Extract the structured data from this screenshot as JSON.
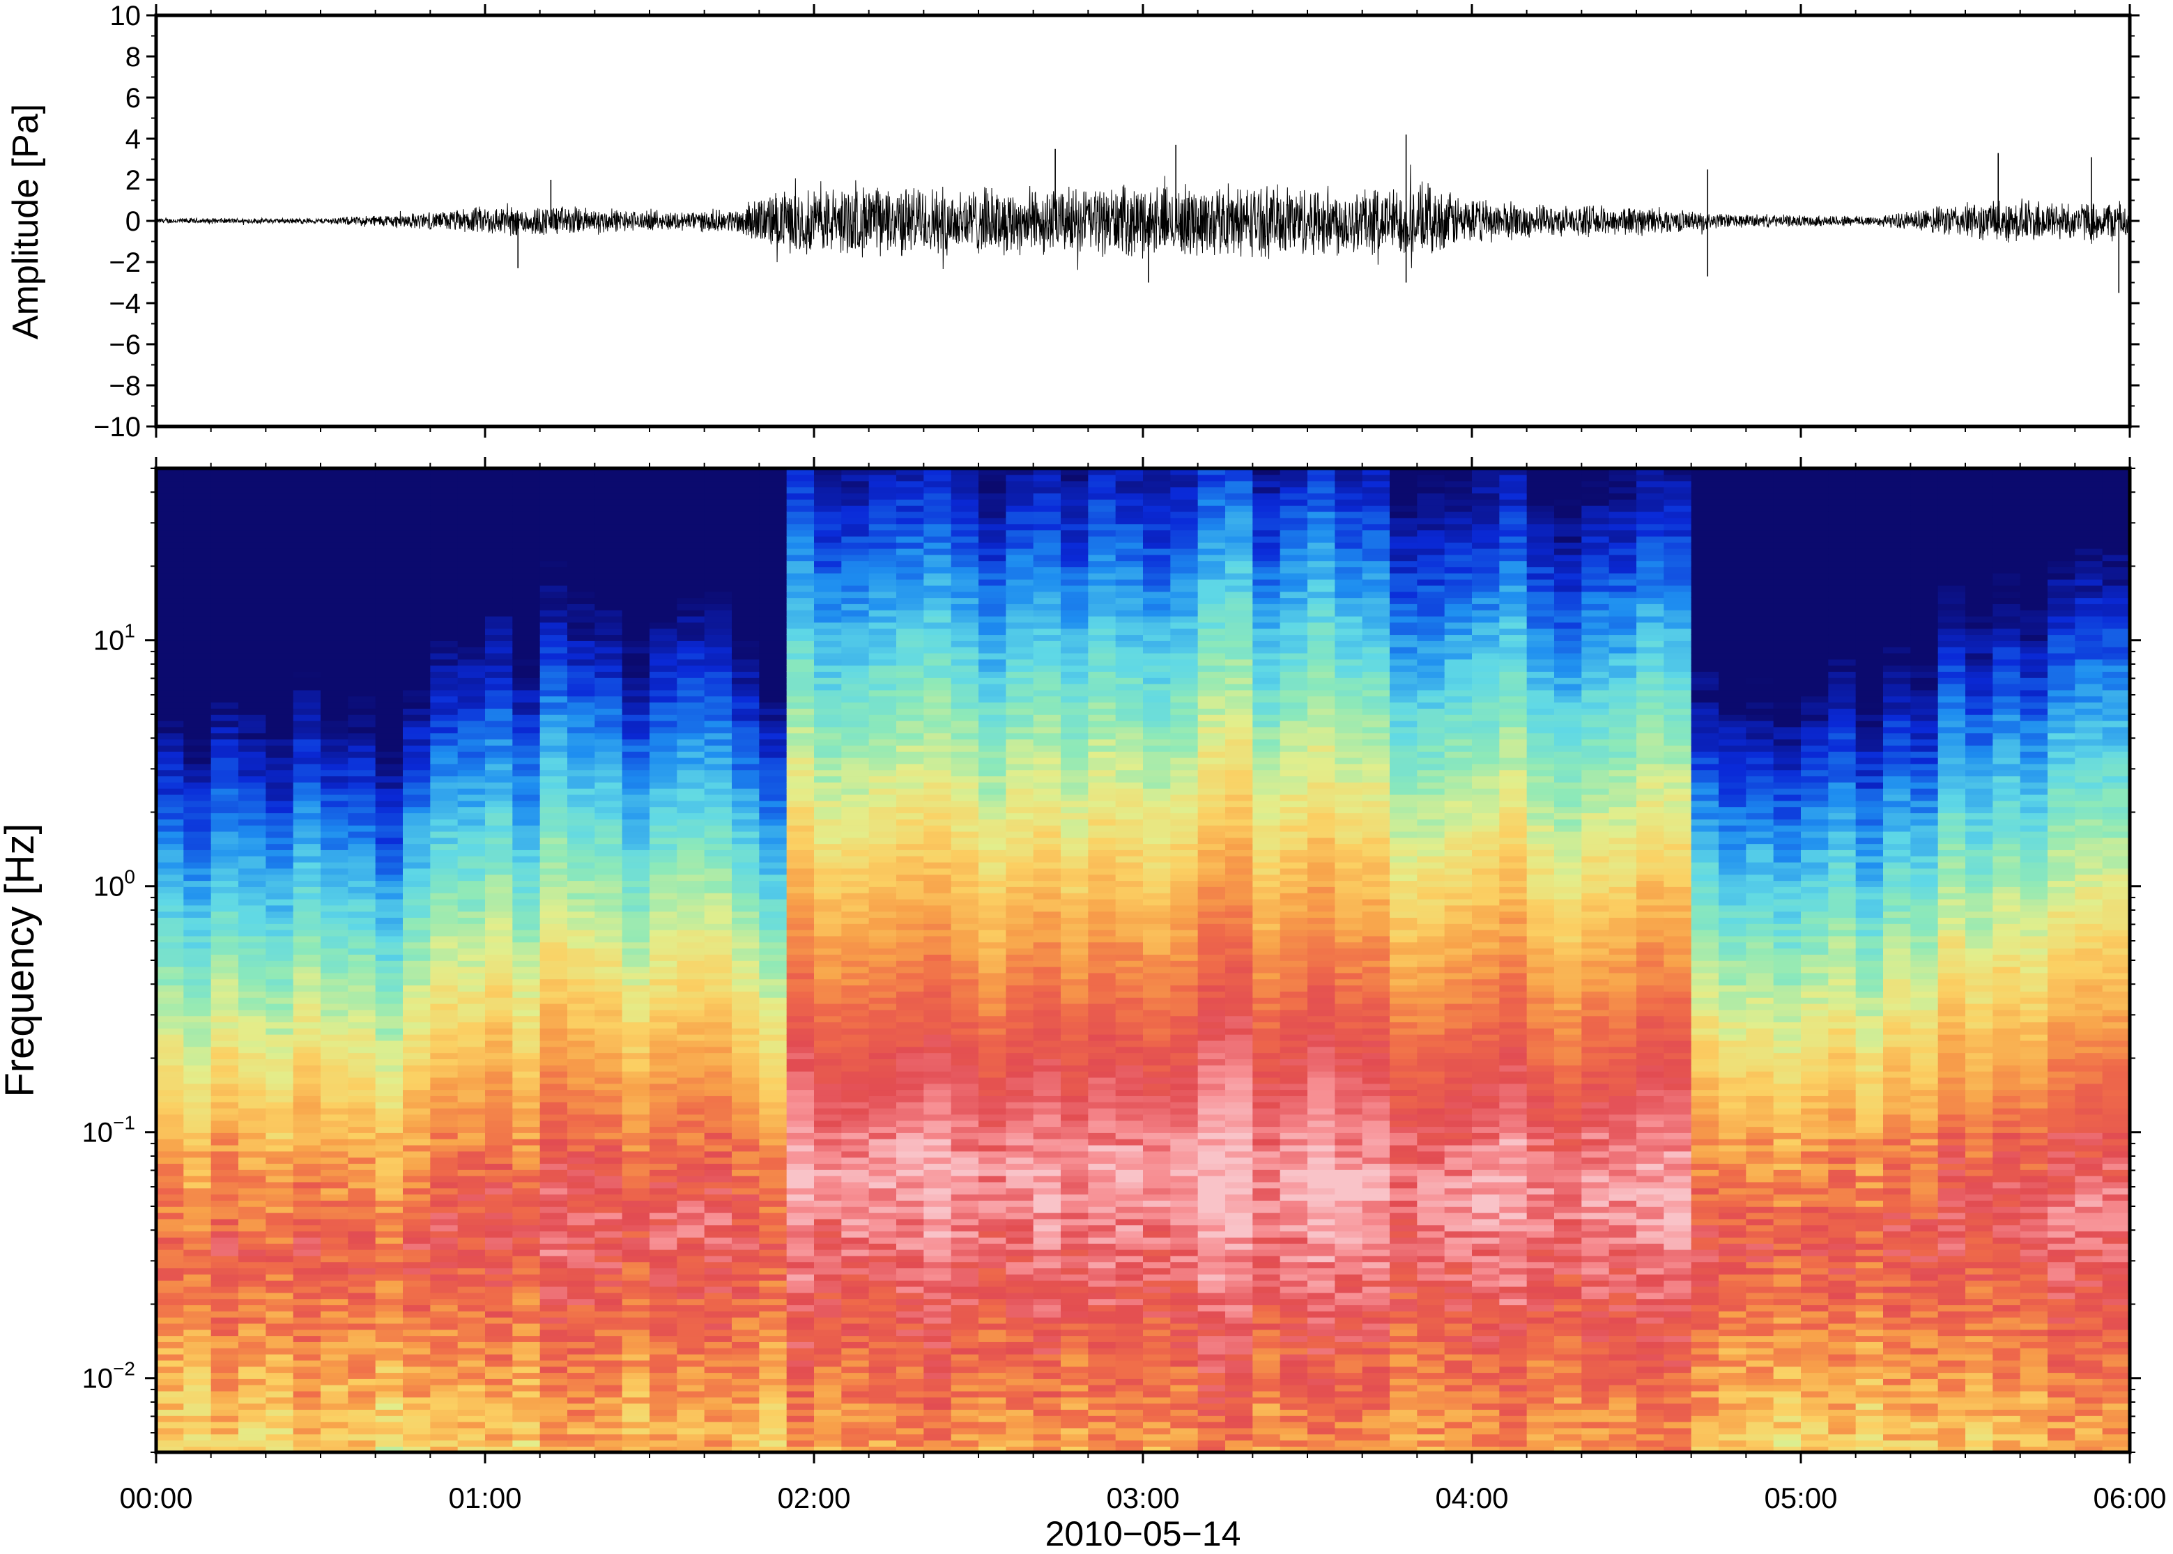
{
  "chart_data": [
    {
      "type": "line",
      "panel": "waveform",
      "ylabel": "Amplitude [Pa]",
      "ylim": [
        -10,
        10
      ],
      "yticks": [
        10,
        8,
        6,
        4,
        2,
        0,
        -2,
        -4,
        -6,
        -8,
        -10
      ],
      "ytick_labels": [
        "10",
        "8",
        "6",
        "4",
        "2",
        "0",
        "−2",
        "−4",
        "−6",
        "−8",
        "−10"
      ],
      "xlim": [
        "00:00",
        "06:00"
      ],
      "envelope": {
        "time": [
          "00:00",
          "00:30",
          "00:52",
          "01:00",
          "01:15",
          "01:30",
          "01:45",
          "01:52",
          "02:00",
          "02:15",
          "02:30",
          "02:45",
          "03:00",
          "03:15",
          "03:30",
          "03:45",
          "03:50",
          "04:00",
          "04:15",
          "04:30",
          "04:45",
          "05:00",
          "05:15",
          "05:28",
          "05:40",
          "05:50",
          "06:00"
        ],
        "amplitude": [
          0.15,
          0.15,
          0.5,
          0.8,
          0.8,
          0.5,
          0.6,
          1.5,
          1.8,
          1.9,
          1.8,
          1.8,
          1.9,
          1.9,
          1.9,
          1.8,
          2.0,
          1.2,
          0.8,
          0.8,
          0.4,
          0.3,
          0.3,
          0.9,
          1.2,
          1.0,
          1.1
        ]
      },
      "spikes": [
        {
          "time": "01:06",
          "value": -2.3
        },
        {
          "time": "01:12",
          "value": 2.0
        },
        {
          "time": "02:44",
          "value": 3.5
        },
        {
          "time": "03:01",
          "value": -3.0
        },
        {
          "time": "03:06",
          "value": 3.7
        },
        {
          "time": "03:48",
          "value": 4.2
        },
        {
          "time": "03:48",
          "value": -3.0
        },
        {
          "time": "04:43",
          "value": -2.7
        },
        {
          "time": "04:43",
          "value": 2.5
        },
        {
          "time": "05:36",
          "value": 3.3
        },
        {
          "time": "05:53",
          "value": 3.1
        },
        {
          "time": "05:58",
          "value": -3.5
        }
      ]
    },
    {
      "type": "heatmap",
      "panel": "spectrogram",
      "ylabel": "Frequency [Hz]",
      "yscale": "log",
      "ylim": [
        0.005,
        50
      ],
      "yticks": [
        {
          "base": "10",
          "exp": "1",
          "value": 10
        },
        {
          "base": "10",
          "exp": "0",
          "value": 1
        },
        {
          "base": "10",
          "exp": "−1",
          "value": 0.1
        },
        {
          "base": "10",
          "exp": "−2",
          "value": 0.01
        }
      ],
      "xlabel": "2010−05−14",
      "xticks": [
        "00:00",
        "01:00",
        "02:00",
        "03:00",
        "04:00",
        "05:00",
        "06:00"
      ],
      "colormap": [
        "#0b0a6e",
        "#0a2ad8",
        "#1e8ef0",
        "#5fd8e6",
        "#8ee9b8",
        "#e2ee8c",
        "#fbd063",
        "#f8a24a",
        "#ef6a4a",
        "#e24c52",
        "#f78e92",
        "#f9c3c8"
      ],
      "time_segments": [
        {
          "start": "00:00",
          "end": "00:52",
          "intensity": 0.15
        },
        {
          "start": "00:52",
          "end": "01:45",
          "intensity": 0.4
        },
        {
          "start": "01:45",
          "end": "01:54",
          "intensity": 0.3
        },
        {
          "start": "01:54",
          "end": "03:45",
          "intensity": 0.9
        },
        {
          "start": "03:45",
          "end": "04:40",
          "intensity": 0.75
        },
        {
          "start": "04:40",
          "end": "05:27",
          "intensity": 0.25
        },
        {
          "start": "05:27",
          "end": "06:00",
          "intensity": 0.5
        }
      ]
    }
  ]
}
